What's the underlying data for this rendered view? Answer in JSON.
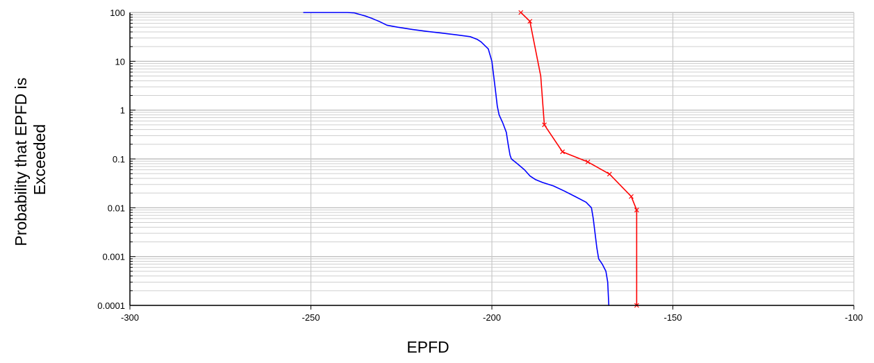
{
  "chart_data": {
    "type": "line",
    "xlabel": "EPFD",
    "ylabel_lines": [
      "Probability that EPFD is",
      "Exceeded"
    ],
    "xlim": [
      -300,
      -100
    ],
    "ylim": [
      0.0001,
      100
    ],
    "yscale": "log",
    "grid": true,
    "x_ticks": [
      -300,
      -250,
      -200,
      -150,
      -100
    ],
    "x_tick_labels": [
      "-300",
      "-250",
      "-200",
      "-150",
      "-100"
    ],
    "y_ticks": [
      100,
      10,
      1,
      0.1,
      0.01,
      0.001,
      0.0001
    ],
    "y_tick_labels": [
      "100",
      "10",
      "1",
      "0.1",
      "0.01",
      "0.001",
      "0.0001"
    ],
    "series": [
      {
        "color": "#0000ff",
        "marker": "none",
        "points": [
          [
            -252,
            100
          ],
          [
            -240,
            100
          ],
          [
            -238,
            98
          ],
          [
            -235,
            85
          ],
          [
            -233,
            75
          ],
          [
            -231,
            65
          ],
          [
            -229,
            55
          ],
          [
            -226,
            50
          ],
          [
            -222,
            45
          ],
          [
            -218,
            41
          ],
          [
            -214,
            38
          ],
          [
            -210,
            35
          ],
          [
            -206,
            32
          ],
          [
            -204,
            28
          ],
          [
            -203,
            25
          ],
          [
            -201,
            18
          ],
          [
            -200,
            10
          ],
          [
            -199.5,
            5
          ],
          [
            -199,
            2.5
          ],
          [
            -198.5,
            1.2
          ],
          [
            -198,
            0.8
          ],
          [
            -197,
            0.55
          ],
          [
            -196,
            0.35
          ],
          [
            -195.5,
            0.2
          ],
          [
            -195,
            0.12
          ],
          [
            -194.6,
            0.1
          ],
          [
            -193,
            0.08
          ],
          [
            -191,
            0.06
          ],
          [
            -189.5,
            0.045
          ],
          [
            -188,
            0.038
          ],
          [
            -186,
            0.033
          ],
          [
            -183,
            0.028
          ],
          [
            -180,
            0.022
          ],
          [
            -177,
            0.017
          ],
          [
            -174,
            0.013
          ],
          [
            -172.5,
            0.01
          ],
          [
            -172,
            0.006
          ],
          [
            -171.5,
            0.003
          ],
          [
            -171,
            0.0015
          ],
          [
            -170.5,
            0.0009
          ],
          [
            -169.5,
            0.0007
          ],
          [
            -168.5,
            0.0005
          ],
          [
            -168,
            0.0003
          ],
          [
            -167.7,
            0.0001
          ]
        ]
      },
      {
        "color": "#ff0000",
        "marker": "x",
        "points": [
          [
            -192,
            100
          ],
          [
            -189.5,
            66
          ],
          [
            -186.5,
            5
          ],
          [
            -185.5,
            0.5
          ],
          [
            -180.5,
            0.14
          ],
          [
            -173.5,
            0.087
          ],
          [
            -167.5,
            0.049
          ],
          [
            -161.5,
            0.017
          ],
          [
            -160,
            0.009
          ],
          [
            -160,
            0.0001
          ]
        ],
        "marker_points": [
          [
            -192,
            100
          ],
          [
            -189.5,
            66
          ],
          [
            -185.5,
            0.5
          ],
          [
            -180.5,
            0.14
          ],
          [
            -173.5,
            0.087
          ],
          [
            -167.5,
            0.049
          ],
          [
            -161.5,
            0.017
          ],
          [
            -160,
            0.009
          ],
          [
            -160,
            0.0001
          ]
        ]
      }
    ]
  }
}
